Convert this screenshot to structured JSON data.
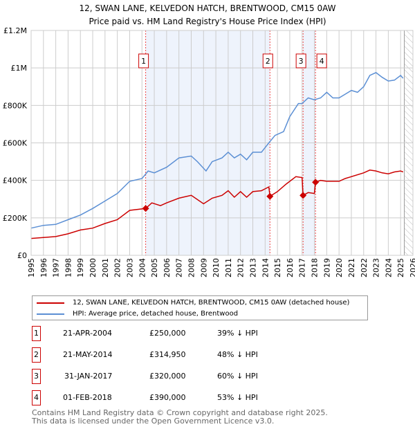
{
  "chart_data": {
    "type": "line",
    "title": "12, SWAN LANE, KELVEDON HATCH, BRENTWOOD, CM15 0AW",
    "subtitle": "Price paid vs. HM Land Registry's House Price Index (HPI)",
    "xlim": [
      1995,
      2026
    ],
    "ylim": [
      0,
      1200000
    ],
    "x_ticks": [
      "1995",
      "1996",
      "1997",
      "1998",
      "1999",
      "2000",
      "2001",
      "2002",
      "2003",
      "2004",
      "2005",
      "2006",
      "2007",
      "2008",
      "2009",
      "2010",
      "2011",
      "2012",
      "2013",
      "2014",
      "2015",
      "2016",
      "2017",
      "2018",
      "2019",
      "2020",
      "2021",
      "2022",
      "2023",
      "2024",
      "2025",
      "2026"
    ],
    "y_ticks": [
      {
        "v": 0,
        "label": "£0"
      },
      {
        "v": 200000,
        "label": "£200K"
      },
      {
        "v": 400000,
        "label": "£400K"
      },
      {
        "v": 600000,
        "label": "£600K"
      },
      {
        "v": 800000,
        "label": "£800K"
      },
      {
        "v": 1000000,
        "label": "£1M"
      },
      {
        "v": 1200000,
        "label": "£1.2M"
      }
    ],
    "grid": true,
    "shaded_periods": [
      [
        2004.3,
        2014.39
      ],
      [
        2017.08,
        2018.09
      ]
    ],
    "forecast_hatch_from": 2025.3,
    "series": [
      {
        "name": "12, SWAN LANE, KELVEDON HATCH, BRENTWOOD, CM15 0AW (detached house)",
        "color": "#cc0000",
        "x": [
          1995,
          1996,
          1997,
          1998,
          1999,
          2000,
          2001,
          2002,
          2003,
          2004.3,
          2004.8,
          2005.5,
          2006,
          2007,
          2008,
          2009,
          2009.7,
          2010.5,
          2011,
          2011.5,
          2012,
          2012.5,
          2013,
          2013.7,
          2014.3,
          2014.39,
          2015,
          2015.7,
          2016.5,
          2017,
          2017.08,
          2017.5,
          2018,
          2018.09,
          2018.5,
          2019,
          2020,
          2020.5,
          2021,
          2022,
          2022.5,
          2023,
          2023.5,
          2024,
          2024.5,
          2025,
          2025.2
        ],
        "y": [
          90000,
          95000,
          100000,
          115000,
          135000,
          145000,
          170000,
          190000,
          240000,
          250000,
          280000,
          265000,
          280000,
          305000,
          320000,
          275000,
          305000,
          320000,
          345000,
          310000,
          340000,
          310000,
          340000,
          345000,
          365000,
          314950,
          340000,
          380000,
          420000,
          415000,
          320000,
          335000,
          330000,
          390000,
          400000,
          395000,
          395000,
          410000,
          420000,
          440000,
          455000,
          450000,
          440000,
          435000,
          445000,
          450000,
          445000
        ]
      },
      {
        "name": "HPI: Average price, detached house, Brentwood",
        "color": "#5b8fd4",
        "x": [
          1995,
          1996,
          1997,
          1998,
          1999,
          2000,
          2001,
          2002,
          2003,
          2004,
          2004.5,
          2005,
          2006,
          2007,
          2008,
          2008.5,
          2009.2,
          2009.7,
          2010.5,
          2011,
          2011.5,
          2012,
          2012.5,
          2013,
          2013.7,
          2014.3,
          2014.8,
          2015.5,
          2016,
          2016.7,
          2017,
          2017.5,
          2018,
          2018.5,
          2019,
          2019.5,
          2020,
          2020.5,
          2021,
          2021.5,
          2022,
          2022.5,
          2023,
          2023.5,
          2024,
          2024.5,
          2025,
          2025.2
        ],
        "y": [
          145000,
          160000,
          165000,
          190000,
          215000,
          250000,
          290000,
          330000,
          395000,
          410000,
          450000,
          440000,
          470000,
          520000,
          530000,
          500000,
          450000,
          500000,
          520000,
          550000,
          520000,
          540000,
          510000,
          550000,
          550000,
          600000,
          640000,
          660000,
          740000,
          810000,
          810000,
          840000,
          830000,
          840000,
          870000,
          840000,
          840000,
          860000,
          880000,
          870000,
          900000,
          960000,
          975000,
          950000,
          930000,
          935000,
          960000,
          945000
        ]
      }
    ],
    "sales": [
      {
        "n": "1",
        "x": 2004.3,
        "y": 250000,
        "date": "21-APR-2004",
        "price": "£250,000",
        "hpi": "39% ↓ HPI"
      },
      {
        "n": "2",
        "x": 2014.39,
        "y": 314950,
        "date": "21-MAY-2014",
        "price": "£314,950",
        "hpi": "48% ↓ HPI"
      },
      {
        "n": "3",
        "x": 2017.08,
        "y": 320000,
        "date": "31-JAN-2017",
        "price": "£320,000",
        "hpi": "60% ↓ HPI"
      },
      {
        "n": "4",
        "x": 2018.09,
        "y": 390000,
        "date": "01-FEB-2018",
        "price": "£390,000",
        "hpi": "53% ↓ HPI"
      }
    ]
  },
  "footer": {
    "line1": "Contains HM Land Registry data © Crown copyright and database right 2025.",
    "line2": "This data is licensed under the Open Government Licence v3.0."
  }
}
